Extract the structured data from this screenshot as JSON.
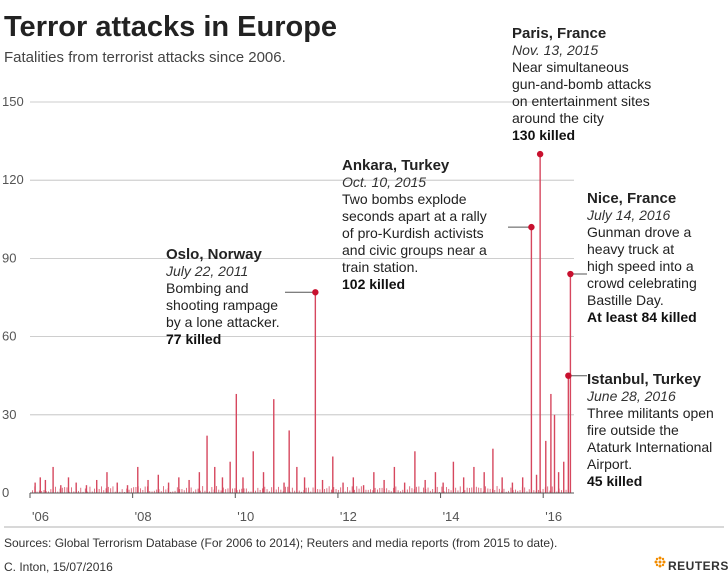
{
  "title": "Terror attacks in Europe",
  "subtitle": "Fatalities from terrorist attacks since 2006.",
  "sources": "Sources: Global Terrorism Database (For 2006 to 2014); Reuters and media reports (from 2015 to date).",
  "credit": "C. Inton,  15/07/2016",
  "logo_text": "REUTERS",
  "colors": {
    "accent": "#c8102e",
    "bar": "#d6475e",
    "grid": "#bdbdbd"
  },
  "chart_data": {
    "type": "bar",
    "xlabel": "",
    "ylabel": "",
    "ylim": [
      0,
      150
    ],
    "xlim": [
      2006.0,
      2016.6
    ],
    "y_ticks": [
      0,
      30,
      60,
      90,
      120,
      150
    ],
    "x_ticks": [
      {
        "value": 2006.0,
        "label": "'06"
      },
      {
        "value": 2008.0,
        "label": "'08"
      },
      {
        "value": 2010.0,
        "label": "'10"
      },
      {
        "value": 2012.0,
        "label": "'12"
      },
      {
        "value": 2014.0,
        "label": "'14"
      },
      {
        "value": 2016.0,
        "label": "'16"
      }
    ],
    "bars": {
      "x": [
        2006.1,
        2006.2,
        2006.3,
        2006.45,
        2006.6,
        2006.75,
        2006.9,
        2007.1,
        2007.3,
        2007.5,
        2007.7,
        2007.9,
        2008.1,
        2008.3,
        2008.5,
        2008.7,
        2008.9,
        2009.1,
        2009.3,
        2009.45,
        2009.6,
        2009.75,
        2009.9,
        2010.02,
        2010.15,
        2010.35,
        2010.55,
        2010.75,
        2010.95,
        2011.05,
        2011.2,
        2011.35,
        2011.56,
        2011.7,
        2011.9,
        2012.1,
        2012.3,
        2012.5,
        2012.7,
        2012.9,
        2013.1,
        2013.3,
        2013.5,
        2013.7,
        2013.9,
        2014.05,
        2014.25,
        2014.45,
        2014.65,
        2014.85,
        2015.02,
        2015.2,
        2015.4,
        2015.6,
        2015.77,
        2015.87,
        2015.94,
        2016.05,
        2016.15,
        2016.22,
        2016.3,
        2016.4,
        2016.49,
        2016.53
      ],
      "y": [
        4,
        6,
        5,
        10,
        3,
        6,
        4,
        3,
        5,
        8,
        4,
        3,
        10,
        5,
        7,
        4,
        6,
        5,
        8,
        22,
        10,
        6,
        12,
        38,
        6,
        16,
        8,
        36,
        4,
        24,
        10,
        6,
        77,
        5,
        14,
        4,
        6,
        3,
        8,
        5,
        10,
        4,
        16,
        5,
        8,
        4,
        12,
        6,
        10,
        8,
        17,
        6,
        4,
        6,
        102,
        7,
        130,
        20,
        38,
        30,
        8,
        12,
        45,
        84
      ],
      "series_name": ""
    },
    "annotations": [
      {
        "x": 2011.56,
        "y": 77,
        "place": "Oslo, Norway",
        "date": "July 22, 2011",
        "desc": [
          "Bombing and",
          "shooting rampage",
          "by a lone attacker."
        ],
        "toll": "77 killed"
      },
      {
        "x": 2015.77,
        "y": 102,
        "place": "Ankara, Turkey",
        "date": "Oct. 10, 2015",
        "desc": [
          "Two bombs explode",
          "seconds apart at a rally",
          "of pro-Kurdish activists",
          "and civic groups near a",
          "train station."
        ],
        "toll": "102 killed"
      },
      {
        "x": 2015.94,
        "y": 130,
        "place": "Paris, France",
        "date": "Nov. 13, 2015",
        "desc": [
          "Near simultaneous",
          "gun-and-bomb attacks",
          "on entertainment sites",
          "around the city"
        ],
        "toll": "130 killed"
      },
      {
        "x": 2016.53,
        "y": 84,
        "place": "Nice, France",
        "date": "July 14, 2016",
        "desc": [
          "Gunman drove a",
          "heavy truck at",
          "high speed into a",
          "crowd celebrating",
          "Bastille Day."
        ],
        "toll": "At least 84 killed"
      },
      {
        "x": 2016.49,
        "y": 45,
        "place": "Istanbul, Turkey",
        "date": "June 28, 2016",
        "desc": [
          "Three militants open",
          "fire outside the",
          "Ataturk International",
          "Airport."
        ],
        "toll": "45 killed"
      }
    ]
  }
}
